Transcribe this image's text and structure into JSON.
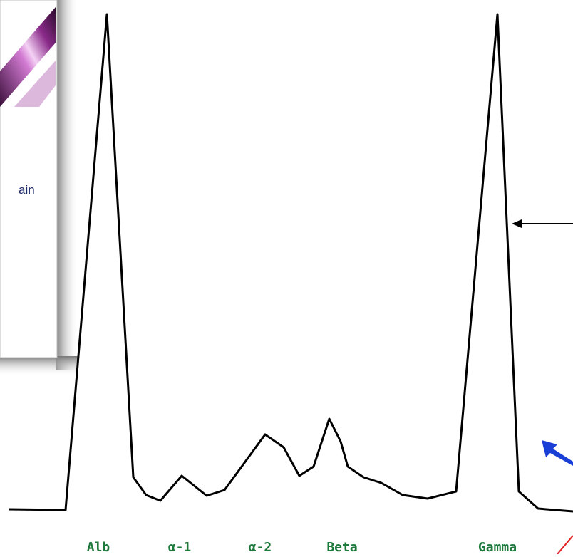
{
  "panel": {
    "text": "ain"
  },
  "labels": [
    "Alb",
    "α-1",
    "α-2",
    "Beta",
    "Gamma"
  ]
}
